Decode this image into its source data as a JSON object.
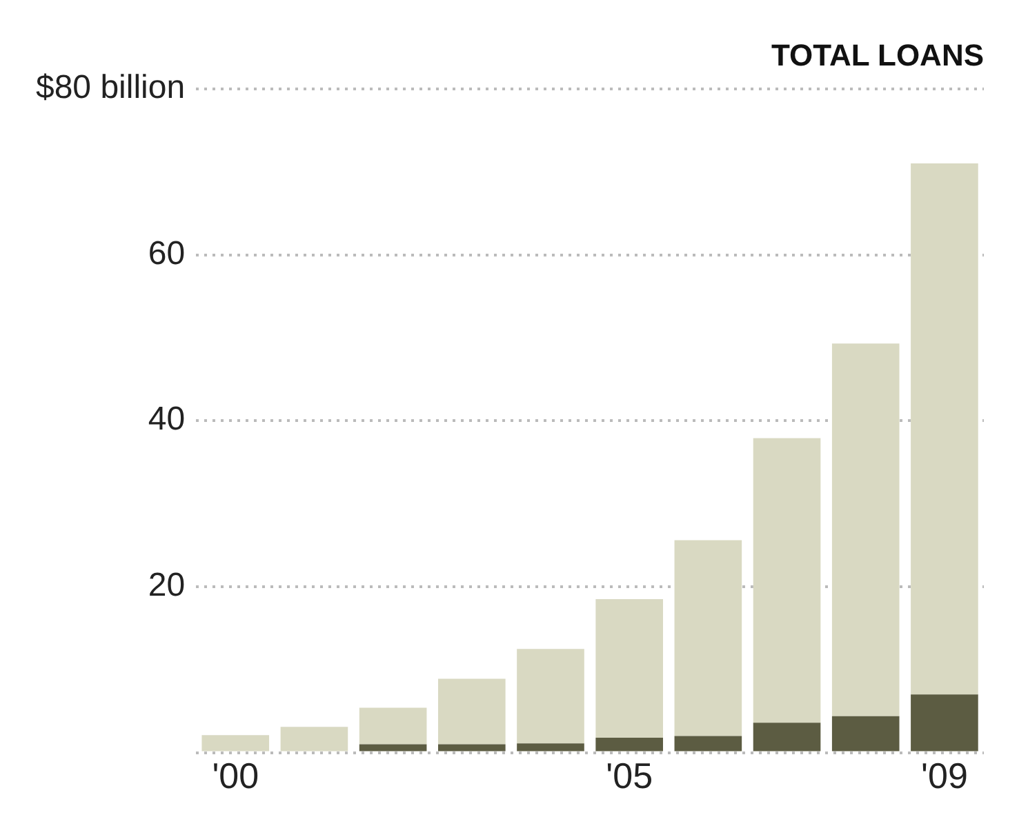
{
  "chart_data": {
    "type": "bar",
    "title": "TOTAL LOANS",
    "stacked": true,
    "categories": [
      "'00",
      null,
      null,
      null,
      null,
      "'05",
      null,
      null,
      null,
      "'09"
    ],
    "series": [
      {
        "color": "#5c5c42",
        "values": [
          0,
          0,
          1.0,
          1.0,
          1.1,
          1.8,
          2.0,
          3.6,
          4.4,
          7.0
        ]
      },
      {
        "color": "#d9d9c2",
        "values": [
          2.1,
          3.1,
          4.4,
          7.9,
          11.4,
          16.7,
          23.6,
          34.3,
          44.9,
          64.0
        ]
      }
    ],
    "ylim": [
      0,
      80
    ],
    "yticks": [
      {
        "value": 0,
        "label": null
      },
      20,
      40,
      60,
      {
        "value": 80,
        "label": "$80 billion"
      }
    ],
    "grid": "y",
    "legend": false
  }
}
